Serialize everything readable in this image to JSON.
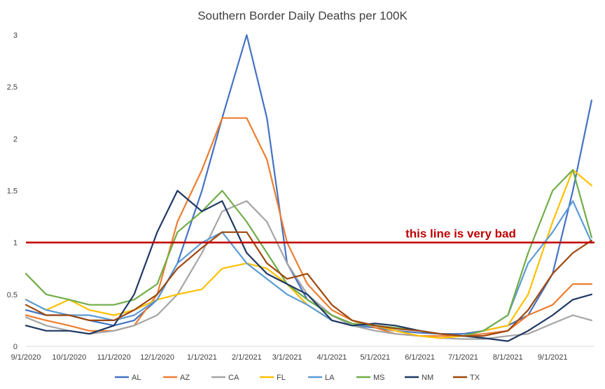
{
  "chart_data": {
    "type": "line",
    "title": "Southern Border Daily Deaths per 100K",
    "xlabel": "",
    "ylabel": "",
    "ylim": [
      0,
      3
    ],
    "yticks": [
      0,
      0.5,
      1,
      1.5,
      2,
      2.5,
      3
    ],
    "ytick_labels": [
      "0",
      "0.5",
      "1",
      "1.5",
      "2",
      "2.5",
      "3"
    ],
    "x": [
      "9/1/2020",
      "9/15/2020",
      "10/1/2020",
      "10/15/2020",
      "11/1/2020",
      "11/15/2020",
      "12/1/2020",
      "12/15/2020",
      "1/1/2021",
      "1/15/2021",
      "2/1/2021",
      "2/15/2021",
      "3/1/2021",
      "3/15/2021",
      "4/1/2021",
      "4/15/2021",
      "5/1/2021",
      "5/15/2021",
      "6/1/2021",
      "6/15/2021",
      "7/1/2021",
      "7/15/2021",
      "8/1/2021",
      "8/15/2021",
      "9/1/2021",
      "9/15/2021",
      "9/28/2021"
    ],
    "xticks": [
      "9/1/2020",
      "10/1/2020",
      "11/1/2020",
      "12/1/2020",
      "1/1/2021",
      "2/1/2021",
      "3/1/2021",
      "4/1/2021",
      "5/1/2021",
      "6/1/2021",
      "7/1/2021",
      "8/1/2021",
      "9/1/2021"
    ],
    "series": [
      {
        "name": "AL",
        "color": "#4472C4",
        "values": [
          0.35,
          0.3,
          0.3,
          0.25,
          0.2,
          0.25,
          0.45,
          0.8,
          1.5,
          2.2,
          3.0,
          2.2,
          0.8,
          0.45,
          0.3,
          0.2,
          0.18,
          0.15,
          0.13,
          0.12,
          0.12,
          0.15,
          0.2,
          0.3,
          0.7,
          1.5,
          2.37
        ]
      },
      {
        "name": "AZ",
        "color": "#ED7D31",
        "values": [
          0.3,
          0.25,
          0.2,
          0.15,
          0.15,
          0.2,
          0.5,
          1.2,
          1.7,
          2.2,
          2.2,
          1.8,
          1.0,
          0.6,
          0.35,
          0.25,
          0.18,
          0.12,
          0.1,
          0.1,
          0.1,
          0.12,
          0.15,
          0.3,
          0.4,
          0.6,
          0.6
        ]
      },
      {
        "name": "CA",
        "color": "#A5A5A5",
        "values": [
          0.28,
          0.2,
          0.15,
          0.12,
          0.15,
          0.2,
          0.3,
          0.5,
          0.9,
          1.3,
          1.4,
          1.2,
          0.8,
          0.5,
          0.3,
          0.2,
          0.15,
          0.12,
          0.1,
          0.08,
          0.07,
          0.07,
          0.1,
          0.12,
          0.22,
          0.3,
          0.25
        ]
      },
      {
        "name": "FL",
        "color": "#FFC000",
        "values": [
          0.45,
          0.35,
          0.45,
          0.35,
          0.3,
          0.35,
          0.45,
          0.5,
          0.55,
          0.75,
          0.8,
          0.75,
          0.6,
          0.4,
          0.25,
          0.2,
          0.2,
          0.15,
          0.1,
          0.08,
          0.1,
          0.15,
          0.2,
          0.5,
          1.2,
          1.7,
          1.55
        ]
      },
      {
        "name": "LA",
        "color": "#5B9BD5",
        "values": [
          0.45,
          0.35,
          0.3,
          0.3,
          0.25,
          0.3,
          0.45,
          0.8,
          1.0,
          1.1,
          0.8,
          0.65,
          0.5,
          0.4,
          0.25,
          0.2,
          0.2,
          0.18,
          0.15,
          0.12,
          0.1,
          0.15,
          0.3,
          0.8,
          1.1,
          1.4,
          1.0
        ]
      },
      {
        "name": "MS",
        "color": "#70AD47",
        "values": [
          0.7,
          0.5,
          0.45,
          0.4,
          0.4,
          0.45,
          0.6,
          1.1,
          1.3,
          1.5,
          1.2,
          0.9,
          0.6,
          0.45,
          0.3,
          0.22,
          0.2,
          0.18,
          0.15,
          0.12,
          0.1,
          0.15,
          0.3,
          0.9,
          1.5,
          1.7,
          1.05
        ]
      },
      {
        "name": "NM",
        "color": "#1F3864",
        "values": [
          0.2,
          0.15,
          0.15,
          0.12,
          0.2,
          0.5,
          1.1,
          1.5,
          1.3,
          1.4,
          0.9,
          0.7,
          0.6,
          0.5,
          0.25,
          0.2,
          0.22,
          0.2,
          0.15,
          0.12,
          0.1,
          0.08,
          0.05,
          0.15,
          0.3,
          0.45,
          0.5
        ]
      },
      {
        "name": "TX",
        "color": "#9E480E",
        "values": [
          0.4,
          0.3,
          0.3,
          0.25,
          0.25,
          0.35,
          0.5,
          0.75,
          0.95,
          1.1,
          1.1,
          0.8,
          0.65,
          0.7,
          0.4,
          0.25,
          0.2,
          0.17,
          0.15,
          0.12,
          0.1,
          0.1,
          0.15,
          0.35,
          0.7,
          0.9,
          1.02
        ]
      }
    ],
    "reference_line": {
      "y": 1,
      "label": "this line is very bad",
      "color": "#C00000"
    },
    "grid": false,
    "legend_position": "bottom"
  }
}
